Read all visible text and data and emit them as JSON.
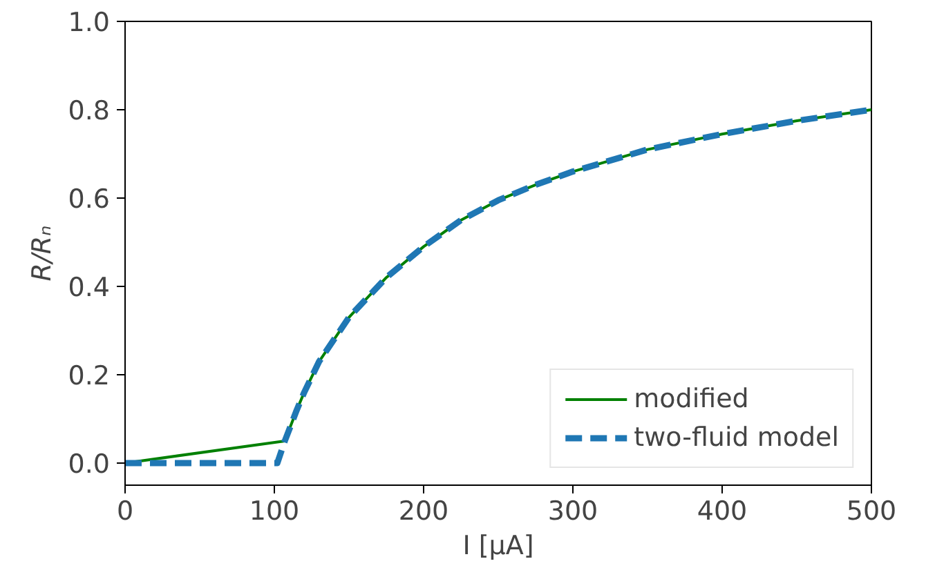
{
  "chart_data": {
    "type": "line",
    "xlabel": "I [μA]",
    "ylabel": "R/Rₙ",
    "xlim": [
      0,
      500
    ],
    "ylim": [
      -0.05,
      1.0
    ],
    "xticks": [
      0,
      100,
      200,
      300,
      400,
      500
    ],
    "yticks": [
      {
        "value": 0,
        "label": "0.0"
      },
      {
        "value": 0.2,
        "label": "0.2"
      },
      {
        "value": 0.4,
        "label": "0.4"
      },
      {
        "value": 0.6,
        "label": "0.6"
      },
      {
        "value": 0.8,
        "label": "0.8"
      },
      {
        "value": 1.0,
        "label": "1.0"
      }
    ],
    "grid": false,
    "legend": "bottom right",
    "series": [
      {
        "name": "modified",
        "color": "#008000",
        "line_style": "solid",
        "x": [
          0,
          107,
          115,
          120,
          130,
          140,
          150,
          175,
          200,
          225,
          250,
          275,
          300,
          350,
          400,
          450,
          500
        ],
        "values": [
          0,
          0.05,
          0.12,
          0.16,
          0.23,
          0.28,
          0.33,
          0.42,
          0.49,
          0.55,
          0.595,
          0.63,
          0.66,
          0.71,
          0.745,
          0.775,
          0.8
        ]
      },
      {
        "name": "two-fluid model",
        "color": "#1f77b4",
        "line_style": "dashed",
        "x": [
          0,
          102,
          107,
          115,
          120,
          130,
          140,
          150,
          175,
          200,
          225,
          250,
          275,
          300,
          350,
          400,
          450,
          500
        ],
        "values": [
          0,
          0,
          0.05,
          0.12,
          0.16,
          0.23,
          0.28,
          0.33,
          0.42,
          0.49,
          0.55,
          0.595,
          0.63,
          0.66,
          0.71,
          0.745,
          0.775,
          0.8
        ]
      }
    ]
  }
}
